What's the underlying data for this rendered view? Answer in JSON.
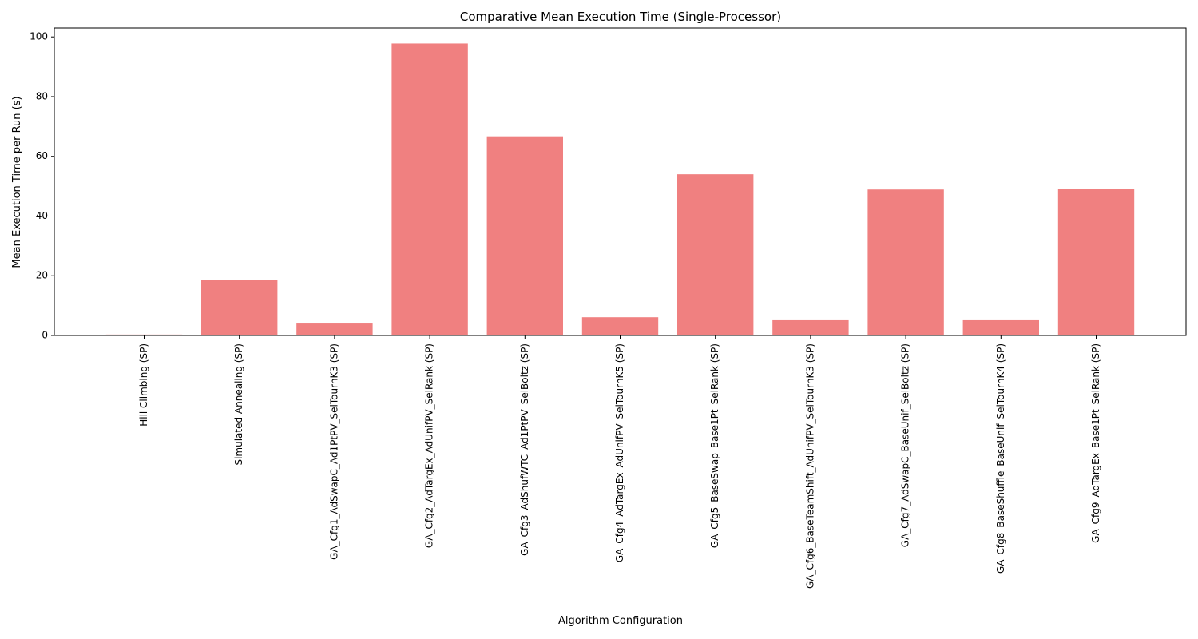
{
  "chart_data": {
    "type": "bar",
    "title": "Comparative Mean Execution Time (Single-Processor)",
    "xlabel": "Algorithm Configuration",
    "ylabel": "Mean Execution Time per Run (s)",
    "categories": [
      "Hill Climbing (SP)",
      "Simulated Annealing (SP)",
      "GA_Cfg1_AdSwapC_Ad1PtPV_SelTournK3 (SP)",
      "GA_Cfg2_AdTargEx_AdUnifPV_SelRank (SP)",
      "GA_Cfg3_AdShufWTC_Ad1PtPV_SelBoltz (SP)",
      "GA_Cfg4_AdTargEx_AdUnifPV_SelTournK5 (SP)",
      "GA_Cfg5_BaseSwap_Base1Pt_SelRank (SP)",
      "GA_Cfg6_BaseTeamShift_AdUnifPV_SelTournK3 (SP)",
      "GA_Cfg7_AdSwapC_BaseUnif_SelBoltz (SP)",
      "GA_Cfg8_BaseShuffle_BaseUnif_SelTournK4 (SP)",
      "GA_Cfg9_AdTargEx_Base1Pt_SelRank (SP)"
    ],
    "values": [
      0.3,
      18.5,
      4.0,
      97.8,
      66.7,
      6.1,
      54.0,
      5.1,
      48.9,
      5.1,
      49.2
    ],
    "ylim": [
      0,
      103
    ],
    "yticks": [
      0,
      20,
      40,
      60,
      80,
      100
    ],
    "grid": false,
    "bar_color": "#f08080"
  }
}
